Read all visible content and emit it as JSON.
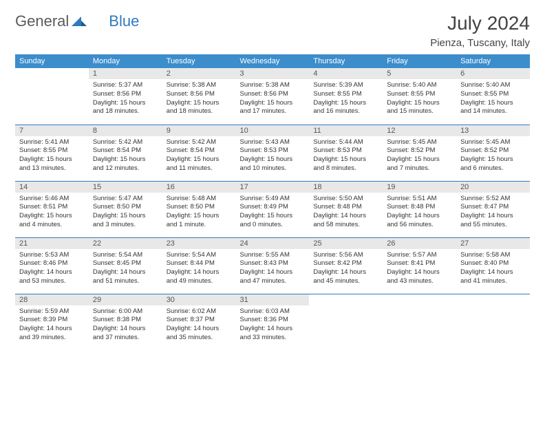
{
  "logo": {
    "text1": "General",
    "text2": "Blue"
  },
  "title": "July 2024",
  "location": "Pienza, Tuscany, Italy",
  "colors": {
    "header_bg": "#3c8dcc",
    "header_text": "#ffffff",
    "daynum_bg": "#e8e8e8",
    "row_border": "#2f7abf",
    "logo_gray": "#5a5a5a",
    "logo_blue": "#2f7abf"
  },
  "weekdays": [
    "Sunday",
    "Monday",
    "Tuesday",
    "Wednesday",
    "Thursday",
    "Friday",
    "Saturday"
  ],
  "start_blank": 1,
  "days": [
    {
      "n": 1,
      "sr": "5:37 AM",
      "ss": "8:56 PM",
      "dl": "15 hours and 18 minutes."
    },
    {
      "n": 2,
      "sr": "5:38 AM",
      "ss": "8:56 PM",
      "dl": "15 hours and 18 minutes."
    },
    {
      "n": 3,
      "sr": "5:38 AM",
      "ss": "8:56 PM",
      "dl": "15 hours and 17 minutes."
    },
    {
      "n": 4,
      "sr": "5:39 AM",
      "ss": "8:55 PM",
      "dl": "15 hours and 16 minutes."
    },
    {
      "n": 5,
      "sr": "5:40 AM",
      "ss": "8:55 PM",
      "dl": "15 hours and 15 minutes."
    },
    {
      "n": 6,
      "sr": "5:40 AM",
      "ss": "8:55 PM",
      "dl": "15 hours and 14 minutes."
    },
    {
      "n": 7,
      "sr": "5:41 AM",
      "ss": "8:55 PM",
      "dl": "15 hours and 13 minutes."
    },
    {
      "n": 8,
      "sr": "5:42 AM",
      "ss": "8:54 PM",
      "dl": "15 hours and 12 minutes."
    },
    {
      "n": 9,
      "sr": "5:42 AM",
      "ss": "8:54 PM",
      "dl": "15 hours and 11 minutes."
    },
    {
      "n": 10,
      "sr": "5:43 AM",
      "ss": "8:53 PM",
      "dl": "15 hours and 10 minutes."
    },
    {
      "n": 11,
      "sr": "5:44 AM",
      "ss": "8:53 PM",
      "dl": "15 hours and 8 minutes."
    },
    {
      "n": 12,
      "sr": "5:45 AM",
      "ss": "8:52 PM",
      "dl": "15 hours and 7 minutes."
    },
    {
      "n": 13,
      "sr": "5:45 AM",
      "ss": "8:52 PM",
      "dl": "15 hours and 6 minutes."
    },
    {
      "n": 14,
      "sr": "5:46 AM",
      "ss": "8:51 PM",
      "dl": "15 hours and 4 minutes."
    },
    {
      "n": 15,
      "sr": "5:47 AM",
      "ss": "8:50 PM",
      "dl": "15 hours and 3 minutes."
    },
    {
      "n": 16,
      "sr": "5:48 AM",
      "ss": "8:50 PM",
      "dl": "15 hours and 1 minute."
    },
    {
      "n": 17,
      "sr": "5:49 AM",
      "ss": "8:49 PM",
      "dl": "15 hours and 0 minutes."
    },
    {
      "n": 18,
      "sr": "5:50 AM",
      "ss": "8:48 PM",
      "dl": "14 hours and 58 minutes."
    },
    {
      "n": 19,
      "sr": "5:51 AM",
      "ss": "8:48 PM",
      "dl": "14 hours and 56 minutes."
    },
    {
      "n": 20,
      "sr": "5:52 AM",
      "ss": "8:47 PM",
      "dl": "14 hours and 55 minutes."
    },
    {
      "n": 21,
      "sr": "5:53 AM",
      "ss": "8:46 PM",
      "dl": "14 hours and 53 minutes."
    },
    {
      "n": 22,
      "sr": "5:54 AM",
      "ss": "8:45 PM",
      "dl": "14 hours and 51 minutes."
    },
    {
      "n": 23,
      "sr": "5:54 AM",
      "ss": "8:44 PM",
      "dl": "14 hours and 49 minutes."
    },
    {
      "n": 24,
      "sr": "5:55 AM",
      "ss": "8:43 PM",
      "dl": "14 hours and 47 minutes."
    },
    {
      "n": 25,
      "sr": "5:56 AM",
      "ss": "8:42 PM",
      "dl": "14 hours and 45 minutes."
    },
    {
      "n": 26,
      "sr": "5:57 AM",
      "ss": "8:41 PM",
      "dl": "14 hours and 43 minutes."
    },
    {
      "n": 27,
      "sr": "5:58 AM",
      "ss": "8:40 PM",
      "dl": "14 hours and 41 minutes."
    },
    {
      "n": 28,
      "sr": "5:59 AM",
      "ss": "8:39 PM",
      "dl": "14 hours and 39 minutes."
    },
    {
      "n": 29,
      "sr": "6:00 AM",
      "ss": "8:38 PM",
      "dl": "14 hours and 37 minutes."
    },
    {
      "n": 30,
      "sr": "6:02 AM",
      "ss": "8:37 PM",
      "dl": "14 hours and 35 minutes."
    },
    {
      "n": 31,
      "sr": "6:03 AM",
      "ss": "8:36 PM",
      "dl": "14 hours and 33 minutes."
    }
  ]
}
